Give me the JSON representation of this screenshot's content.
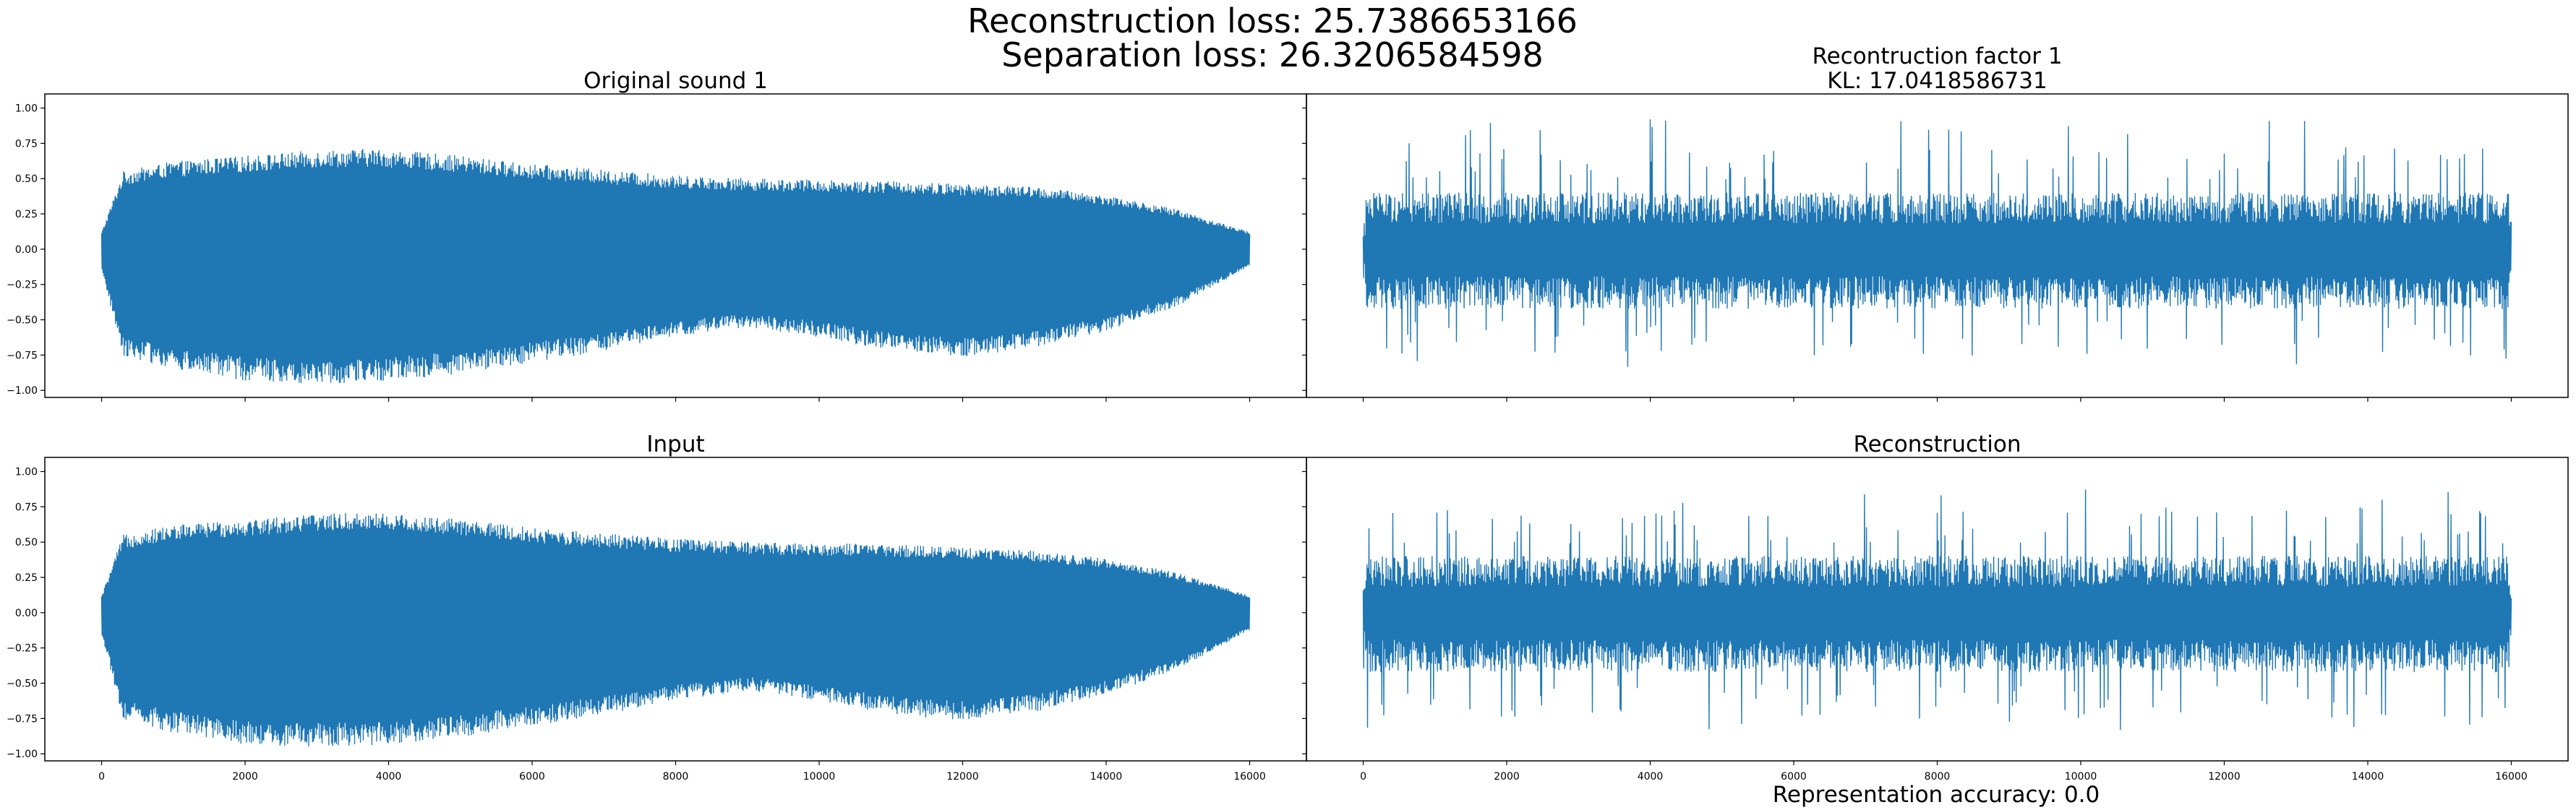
{
  "figure": {
    "suptitle_lines": [
      "Reconstruction loss: 25.7386653166",
      "Separation loss: 26.3206584598"
    ],
    "footer": "Representation accuracy: 0.0",
    "line_color": "#1f77b4",
    "background": "#ffffff"
  },
  "chart_data": [
    {
      "type": "line",
      "panel": "top-left",
      "title_lines": [
        "Original sound 1"
      ],
      "x_range": [
        0,
        16000
      ],
      "ylim": [
        -1.05,
        1.1
      ],
      "yticks": [
        "−1.00",
        "−0.75",
        "−0.50",
        "−0.25",
        "0.00",
        "0.25",
        "0.50",
        "0.75",
        "1.00"
      ],
      "ytick_values": [
        -1.0,
        -0.75,
        -0.5,
        -0.25,
        0.0,
        0.25,
        0.5,
        0.75,
        1.0
      ],
      "xticks": [
        "0",
        "2000",
        "4000",
        "6000",
        "8000",
        "10000",
        "12000",
        "14000",
        "16000"
      ],
      "xtick_values": [
        0,
        2000,
        4000,
        6000,
        8000,
        10000,
        12000,
        14000,
        16000
      ],
      "show_xtick_labels": false,
      "signal": "decaying-tone",
      "envelope_x": [
        0,
        300,
        1000,
        2000,
        3000,
        3800,
        5000,
        6000,
        7000,
        8000,
        9000,
        10000,
        11000,
        12000,
        13000,
        14000,
        15000,
        16000
      ],
      "envelope_upper": [
        0.12,
        0.55,
        0.62,
        0.66,
        0.7,
        0.71,
        0.66,
        0.6,
        0.56,
        0.52,
        0.5,
        0.49,
        0.48,
        0.46,
        0.44,
        0.38,
        0.28,
        0.12
      ],
      "envelope_lower": [
        -0.15,
        -0.75,
        -0.85,
        -0.93,
        -0.95,
        -0.94,
        -0.88,
        -0.8,
        -0.72,
        -0.62,
        -0.55,
        -0.62,
        -0.72,
        -0.76,
        -0.7,
        -0.58,
        -0.4,
        -0.12
      ]
    },
    {
      "type": "line",
      "panel": "top-right",
      "title_lines": [
        "Recontruction factor 1",
        "KL: 17.0418586731"
      ],
      "x_range": [
        0,
        16000
      ],
      "ylim": [
        -1.05,
        1.1
      ],
      "yticks": [
        "−1.00",
        "−0.75",
        "−0.50",
        "−0.25",
        "0.00",
        "0.25",
        "0.50",
        "0.75",
        "1.00"
      ],
      "ytick_values": [
        -1.0,
        -0.75,
        -0.5,
        -0.25,
        0.0,
        0.25,
        0.5,
        0.75,
        1.0
      ],
      "xticks": [
        "0",
        "2000",
        "4000",
        "6000",
        "8000",
        "10000",
        "12000",
        "14000",
        "16000"
      ],
      "xtick_values": [
        0,
        2000,
        4000,
        6000,
        8000,
        10000,
        12000,
        14000,
        16000
      ],
      "show_ytick_labels": false,
      "show_xtick_labels": false,
      "signal": "noise",
      "band_upper": 0.4,
      "band_lower": -0.42,
      "peak_max": 0.92,
      "trough_min": -0.85
    },
    {
      "type": "line",
      "panel": "bottom-left",
      "title_lines": [
        "Input"
      ],
      "x_range": [
        0,
        16000
      ],
      "ylim": [
        -1.05,
        1.1
      ],
      "yticks": [
        "−1.00",
        "−0.75",
        "−0.50",
        "−0.25",
        "0.00",
        "0.25",
        "0.50",
        "0.75",
        "1.00"
      ],
      "ytick_values": [
        -1.0,
        -0.75,
        -0.5,
        -0.25,
        0.0,
        0.25,
        0.5,
        0.75,
        1.0
      ],
      "xticks": [
        "0",
        "2000",
        "4000",
        "6000",
        "8000",
        "10000",
        "12000",
        "14000",
        "16000"
      ],
      "xtick_values": [
        0,
        2000,
        4000,
        6000,
        8000,
        10000,
        12000,
        14000,
        16000
      ],
      "signal": "decaying-tone",
      "envelope_x": [
        0,
        300,
        1000,
        2000,
        3000,
        3800,
        5000,
        6000,
        7000,
        8000,
        9000,
        10000,
        11000,
        12000,
        13000,
        14000,
        15000,
        16000
      ],
      "envelope_upper": [
        0.12,
        0.55,
        0.62,
        0.66,
        0.7,
        0.71,
        0.66,
        0.6,
        0.56,
        0.52,
        0.5,
        0.49,
        0.48,
        0.46,
        0.44,
        0.38,
        0.28,
        0.12
      ],
      "envelope_lower": [
        -0.15,
        -0.75,
        -0.85,
        -0.93,
        -0.95,
        -0.94,
        -0.88,
        -0.8,
        -0.72,
        -0.62,
        -0.55,
        -0.62,
        -0.72,
        -0.76,
        -0.7,
        -0.58,
        -0.4,
        -0.12
      ]
    },
    {
      "type": "line",
      "panel": "bottom-right",
      "title_lines": [
        "Reconstruction"
      ],
      "x_range": [
        0,
        16000
      ],
      "ylim": [
        -1.05,
        1.1
      ],
      "yticks": [
        "−1.00",
        "−0.75",
        "−0.50",
        "−0.25",
        "0.00",
        "0.25",
        "0.50",
        "0.75",
        "1.00"
      ],
      "ytick_values": [
        -1.0,
        -0.75,
        -0.5,
        -0.25,
        0.0,
        0.25,
        0.5,
        0.75,
        1.0
      ],
      "xticks": [
        "0",
        "2000",
        "4000",
        "6000",
        "8000",
        "10000",
        "12000",
        "14000",
        "16000"
      ],
      "xtick_values": [
        0,
        2000,
        4000,
        6000,
        8000,
        10000,
        12000,
        14000,
        16000
      ],
      "show_ytick_labels": false,
      "signal": "noise",
      "band_upper": 0.4,
      "band_lower": -0.42,
      "peak_max": 0.92,
      "trough_min": -0.85
    }
  ]
}
